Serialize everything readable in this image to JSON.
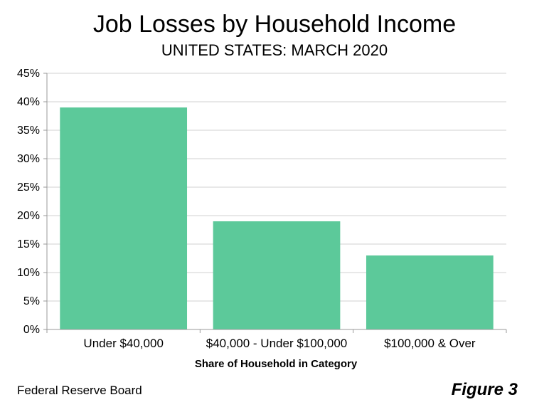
{
  "header": {
    "title": "Job Losses by Household Income",
    "subtitle": "UNITED STATES: MARCH 2020"
  },
  "chart_data": {
    "type": "bar",
    "title": "Job Losses by Household Income",
    "subtitle": "UNITED STATES: MARCH 2020",
    "categories": [
      "Under $40,000",
      "$40,000 - Under $100,000",
      "$100,000 & Over"
    ],
    "values": [
      39,
      19,
      13
    ],
    "y_unit": "%",
    "xlabel": "Share of Household in Category",
    "ylabel": "",
    "ylim": [
      0,
      45
    ],
    "yticks": [
      "0%",
      "5%",
      "10%",
      "15%",
      "20%",
      "25%",
      "30%",
      "35%",
      "40%",
      "45%"
    ],
    "grid": true,
    "legend": "none",
    "bar_color": "#5cc99a",
    "grid_color": "#d0d0d0"
  },
  "footer": {
    "source": "Federal Reserve Board",
    "figure": "Figure 3"
  }
}
